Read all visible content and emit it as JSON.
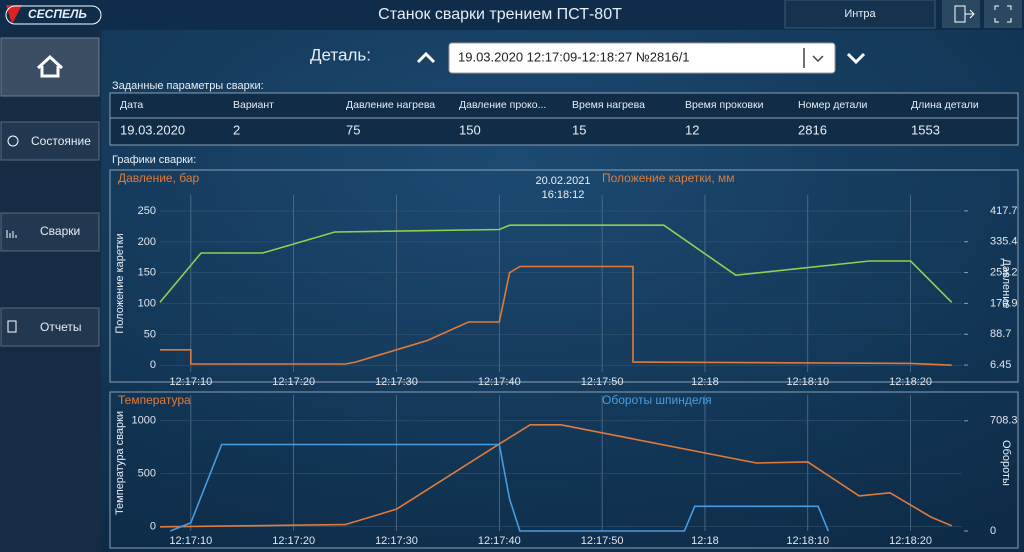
{
  "header": {
    "logo": "СЕСПЕЛЬ",
    "title": "Станок сварки трением ПСТ-80Т",
    "user": "Интра"
  },
  "nav": [
    "Состояние",
    "Сварки",
    "Отчеты"
  ],
  "detail": {
    "label": "Деталь:",
    "value": "19.03.2020 12:17:09-12:18:27 №2816/1"
  },
  "params": {
    "title": "Заданные параметры сварки:",
    "columns": [
      "Дата",
      "Вариант",
      "Давление нагрева",
      "Давление проко...",
      "Время нагрева",
      "Время проковки",
      "Номер детали",
      "Длина детали"
    ],
    "values": [
      "19.03.2020",
      2,
      75,
      150,
      15,
      12,
      2816,
      1553
    ]
  },
  "charts_title": "Графики сварки:",
  "chart_data": [
    {
      "type": "line",
      "title": "Давление, бар",
      "title2": "Положение каретки, мм",
      "annotation": [
        "20.02.2021",
        "16:18:12"
      ],
      "ylabel": "Положение каретки",
      "y2label": "Давление",
      "xlim": [
        "12:17:07",
        "12:18:25"
      ],
      "xticks": [
        "12:17:10",
        "12:17:20",
        "12:17:30",
        "12:17:40",
        "12:17:50",
        "12:18",
        "12:18:10",
        "12:18:20"
      ],
      "ylim": [
        -11,
        276
      ],
      "yticks": [
        0,
        50,
        100,
        150,
        200,
        250
      ],
      "y2lim": [
        -12,
        460
      ],
      "y2ticks": [
        6.45,
        88.7,
        170.9,
        253.2,
        335.4,
        417.7
      ],
      "grid": true,
      "series": [
        {
          "name": "Положение каретки, мм",
          "color": "#8fd14f",
          "x": [
            "12:17:07",
            "12:17:11",
            "12:17:17",
            "12:17:24",
            "12:17:40",
            "12:17:41",
            "12:17:56",
            "12:18:03",
            "12:18:16",
            "12:18:20",
            "12:18:24"
          ],
          "values": [
            102,
            182,
            182,
            216,
            220,
            227,
            227,
            146,
            169,
            169,
            102
          ]
        },
        {
          "name": "Давление, бар",
          "color": "#e07b39",
          "x": [
            "12:17:07",
            "12:17:10",
            "12:17:10",
            "12:17:25",
            "12:17:26",
            "12:17:30",
            "12:17:33",
            "12:17:37",
            "12:17:40",
            "12:17:41",
            "12:17:42",
            "12:17:53",
            "12:17:53",
            "12:18:20",
            "12:18:24"
          ],
          "values": [
            25,
            25,
            2,
            2,
            5,
            25,
            40,
            70,
            70,
            150,
            160,
            160,
            5,
            3,
            0
          ]
        }
      ]
    },
    {
      "type": "line",
      "title": "Температура",
      "title2": "Обороты шпинделя",
      "ylabel": "Температура сварки",
      "y2label": "Обороты",
      "xlim": [
        "12:17:07",
        "12:18:25"
      ],
      "xticks": [
        "12:17:10",
        "12:17:20",
        "12:17:30",
        "12:17:40",
        "12:17:50",
        "12:18",
        "12:18:10",
        "12:18:20"
      ],
      "ylim": [
        -40,
        1240
      ],
      "yticks": [
        0,
        500,
        1000
      ],
      "y2lim": [
        0,
        874
      ],
      "y2ticks": [
        0,
        708.3
      ],
      "grid": true,
      "series": [
        {
          "name": "Температура",
          "color": "#e07b39",
          "x": [
            "12:17:07",
            "12:17:25",
            "12:17:30",
            "12:17:40",
            "12:17:43",
            "12:17:46",
            "12:18:05",
            "12:18:10",
            "12:18:15",
            "12:18:18",
            "12:18:22",
            "12:18:24"
          ],
          "values": [
            0,
            20,
            165,
            780,
            960,
            960,
            600,
            610,
            290,
            320,
            90,
            10
          ]
        },
        {
          "name": "Обороты шпинделя",
          "color": "#4a9be0",
          "axis": "y2",
          "x": [
            "12:17:08",
            "12:17:10",
            "12:17:13",
            "12:17:40",
            "12:17:41",
            "12:17:42",
            "12:17:58",
            "12:17:59",
            "12:18:11",
            "12:18:12"
          ],
          "values": [
            0,
            53,
            556,
            556,
            205,
            0,
            0,
            159,
            159,
            0
          ]
        }
      ]
    }
  ]
}
